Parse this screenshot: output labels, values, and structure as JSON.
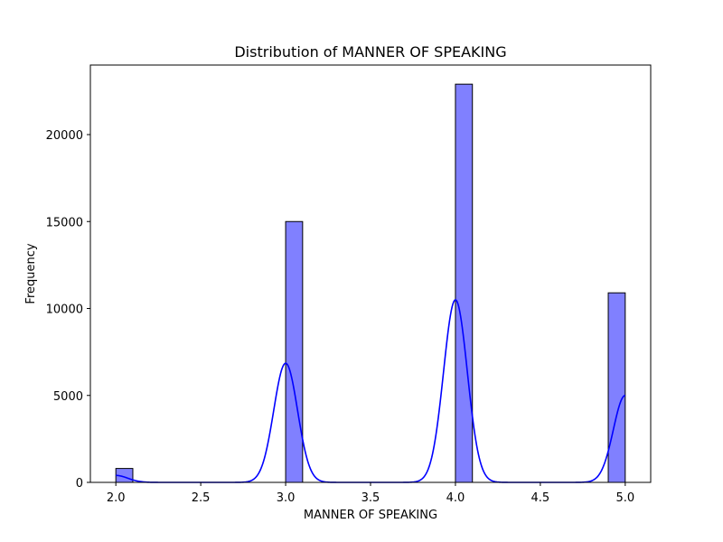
{
  "chart_data": {
    "type": "bar",
    "subtype": "histogram_with_kde",
    "title": "Distribution of MANNER OF SPEAKING",
    "xlabel": "MANNER OF SPEAKING",
    "ylabel": "Frequency",
    "xlim": [
      1.85,
      5.15
    ],
    "ylim": [
      0,
      24000
    ],
    "xticks": [
      2.0,
      2.5,
      3.0,
      3.5,
      4.0,
      4.5,
      5.0
    ],
    "xtick_labels": [
      "2.0",
      "2.5",
      "3.0",
      "3.5",
      "4.0",
      "4.5",
      "5.0"
    ],
    "yticks": [
      0,
      5000,
      10000,
      15000,
      20000
    ],
    "ytick_labels": [
      "0",
      "5000",
      "10000",
      "15000",
      "20000"
    ],
    "bin_width": 0.1,
    "bins": [
      {
        "x0": 2.0,
        "x1": 2.1,
        "count": 800
      },
      {
        "x0": 3.0,
        "x1": 3.1,
        "count": 15000
      },
      {
        "x0": 4.0,
        "x1": 4.1,
        "count": 22900
      },
      {
        "x0": 4.9,
        "x1": 5.0,
        "count": 10900
      }
    ],
    "kde": {
      "x_range": [
        2.0,
        5.0
      ],
      "peaks": [
        {
          "x": 2.0,
          "y": 400
        },
        {
          "x": 3.0,
          "y": 6850
        },
        {
          "x": 4.0,
          "y": 10500
        },
        {
          "x": 5.0,
          "y": 5000
        }
      ],
      "sigma": 0.07
    },
    "grid": false,
    "legend": "none",
    "colors": {
      "bar_fill": "#8080ff",
      "bar_edge": "#000000",
      "kde_line": "#0000ff"
    }
  }
}
